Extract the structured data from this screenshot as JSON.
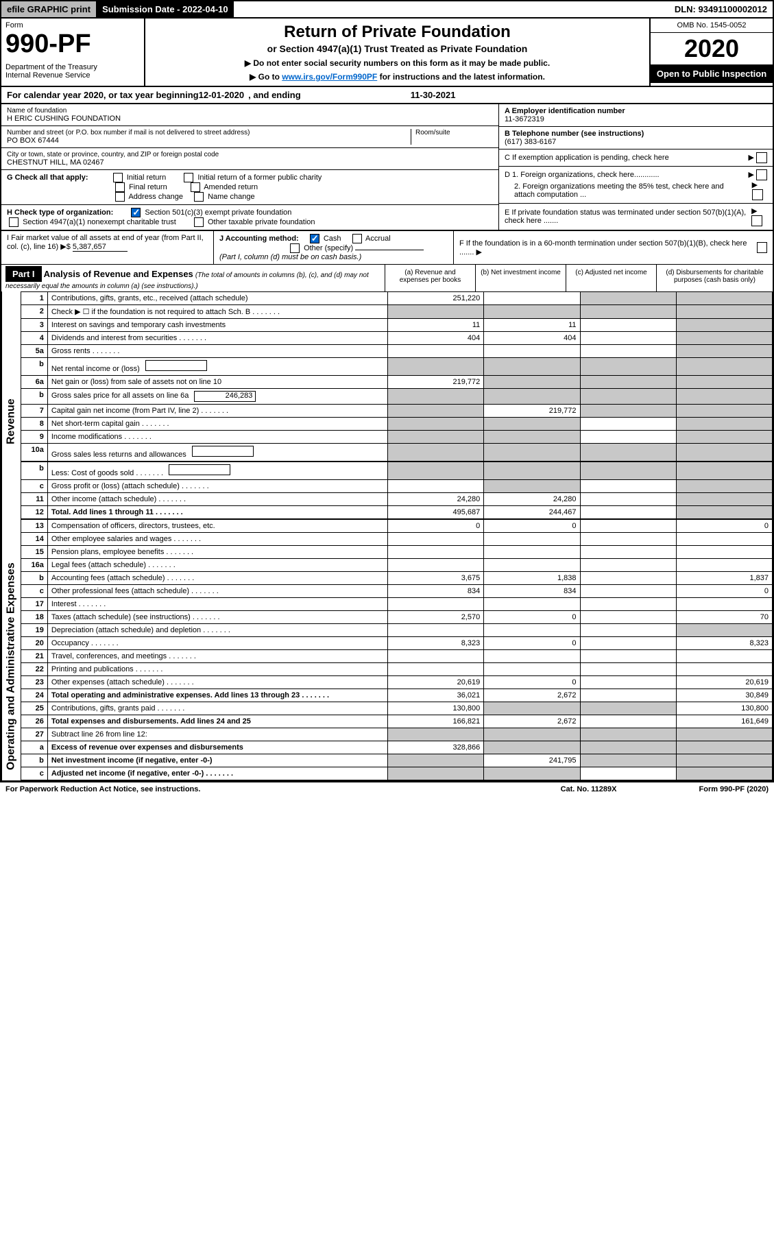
{
  "topbar": {
    "efile": "efile GRAPHIC print",
    "subdate_label": "Submission Date - ",
    "subdate": "2022-04-10",
    "dln_label": "DLN: ",
    "dln": "93491100002012"
  },
  "header": {
    "form_label": "Form",
    "form_num": "990-PF",
    "dept": "Department of the Treasury\nInternal Revenue Service",
    "title": "Return of Private Foundation",
    "subtitle": "or Section 4947(a)(1) Trust Treated as Private Foundation",
    "instr1": "▶ Do not enter social security numbers on this form as it may be made public.",
    "instr2_pre": "▶ Go to ",
    "instr2_link": "www.irs.gov/Form990PF",
    "instr2_post": " for instructions and the latest information.",
    "omb": "OMB No. 1545-0052",
    "year": "2020",
    "open": "Open to Public Inspection"
  },
  "calendar": {
    "text": "For calendar year 2020, or tax year beginning ",
    "begin": "12-01-2020",
    "mid": ", and ending ",
    "end": "11-30-2021"
  },
  "name": {
    "label": "Name of foundation",
    "value": "H ERIC CUSHING FOUNDATION",
    "addr_label": "Number and street (or P.O. box number if mail is not delivered to street address)",
    "addr": "PO BOX 67444",
    "room_label": "Room/suite",
    "city_label": "City or town, state or province, country, and ZIP or foreign postal code",
    "city": "CHESTNUT HILL, MA  02467"
  },
  "right": {
    "a_label": "A Employer identification number",
    "a_val": "11-3672319",
    "b_label": "B Telephone number (see instructions)",
    "b_val": "(617) 383-6167",
    "c_label": "C If exemption application is pending, check here",
    "d1": "D 1. Foreign organizations, check here............",
    "d2": "2. Foreign organizations meeting the 85% test, check here and attach computation ...",
    "e": "E  If private foundation status was terminated under section 507(b)(1)(A), check here .......",
    "f": "F  If the foundation is in a 60-month termination under section 507(b)(1)(B), check here .......  ▶"
  },
  "g": {
    "label": "G Check all that apply:",
    "opts": [
      "Initial return",
      "Initial return of a former public charity",
      "Final return",
      "Amended return",
      "Address change",
      "Name change"
    ]
  },
  "h": {
    "label": "H Check type of organization:",
    "opt1": "Section 501(c)(3) exempt private foundation",
    "opt2": "Section 4947(a)(1) nonexempt charitable trust",
    "opt3": "Other taxable private foundation"
  },
  "i": {
    "label": "I Fair market value of all assets at end of year (from Part II, col. (c), line 16) ▶$ ",
    "val": "5,387,657"
  },
  "j": {
    "label": "J Accounting method:",
    "cash": "Cash",
    "accrual": "Accrual",
    "other": "Other (specify)",
    "note": "(Part I, column (d) must be on cash basis.)"
  },
  "part1": {
    "label": "Part I",
    "title": "Analysis of Revenue and Expenses",
    "note": "(The total of amounts in columns (b), (c), and (d) may not necessarily equal the amounts in column (a) (see instructions).)",
    "col_a": "(a) Revenue and expenses per books",
    "col_b": "(b) Net investment income",
    "col_c": "(c) Adjusted net income",
    "col_d": "(d) Disbursements for charitable purposes (cash basis only)"
  },
  "sections": {
    "revenue": "Revenue",
    "opex": "Operating and Administrative Expenses"
  },
  "rows": [
    {
      "n": "1",
      "d": "Contributions, gifts, grants, etc., received (attach schedule)",
      "a": "251,220",
      "b": "",
      "c": "grey",
      "dd": "grey"
    },
    {
      "n": "2",
      "d": "Check ▶ ☐ if the foundation is not required to attach Sch. B",
      "dots": true,
      "a": "grey",
      "b": "grey",
      "c": "grey",
      "dd": "grey"
    },
    {
      "n": "3",
      "d": "Interest on savings and temporary cash investments",
      "a": "11",
      "b": "11",
      "c": "",
      "dd": "grey"
    },
    {
      "n": "4",
      "d": "Dividends and interest from securities",
      "dots": true,
      "a": "404",
      "b": "404",
      "c": "",
      "dd": "grey"
    },
    {
      "n": "5a",
      "d": "Gross rents",
      "dots": true,
      "a": "",
      "b": "",
      "c": "",
      "dd": "grey"
    },
    {
      "n": "b",
      "d": "Net rental income or (loss)",
      "inline": true,
      "a": "grey",
      "b": "grey",
      "c": "grey",
      "dd": "grey"
    },
    {
      "n": "6a",
      "d": "Net gain or (loss) from sale of assets not on line 10",
      "a": "219,772",
      "b": "grey",
      "c": "grey",
      "dd": "grey"
    },
    {
      "n": "b",
      "d": "Gross sales price for all assets on line 6a",
      "inline": true,
      "inline_val": "246,283",
      "a": "grey",
      "b": "grey",
      "c": "grey",
      "dd": "grey"
    },
    {
      "n": "7",
      "d": "Capital gain net income (from Part IV, line 2)",
      "dots": true,
      "a": "grey",
      "b": "219,772",
      "c": "grey",
      "dd": "grey"
    },
    {
      "n": "8",
      "d": "Net short-term capital gain",
      "dots": true,
      "a": "grey",
      "b": "grey",
      "c": "",
      "dd": "grey"
    },
    {
      "n": "9",
      "d": "Income modifications",
      "dots": true,
      "a": "grey",
      "b": "grey",
      "c": "",
      "dd": "grey"
    },
    {
      "n": "10a",
      "d": "Gross sales less returns and allowances",
      "inline": true,
      "a": "grey",
      "b": "grey",
      "c": "grey",
      "dd": "grey"
    },
    {
      "n": "b",
      "d": "Less: Cost of goods sold",
      "dots": true,
      "inline": true,
      "a": "grey",
      "b": "grey",
      "c": "grey",
      "dd": "grey"
    },
    {
      "n": "c",
      "d": "Gross profit or (loss) (attach schedule)",
      "dots": true,
      "a": "",
      "b": "grey",
      "c": "",
      "dd": "grey"
    },
    {
      "n": "11",
      "d": "Other income (attach schedule)",
      "dots": true,
      "a": "24,280",
      "b": "24,280",
      "c": "",
      "dd": "grey"
    },
    {
      "n": "12",
      "d": "Total. Add lines 1 through 11",
      "dots": true,
      "bold": true,
      "a": "495,687",
      "b": "244,467",
      "c": "",
      "dd": "grey"
    },
    {
      "n": "13",
      "d": "Compensation of officers, directors, trustees, etc.",
      "a": "0",
      "b": "0",
      "c": "",
      "dd": "0"
    },
    {
      "n": "14",
      "d": "Other employee salaries and wages",
      "dots": true,
      "a": "",
      "b": "",
      "c": "",
      "dd": ""
    },
    {
      "n": "15",
      "d": "Pension plans, employee benefits",
      "dots": true,
      "a": "",
      "b": "",
      "c": "",
      "dd": ""
    },
    {
      "n": "16a",
      "d": "Legal fees (attach schedule)",
      "dots": true,
      "a": "",
      "b": "",
      "c": "",
      "dd": ""
    },
    {
      "n": "b",
      "d": "Accounting fees (attach schedule)",
      "dots": true,
      "a": "3,675",
      "b": "1,838",
      "c": "",
      "dd": "1,837"
    },
    {
      "n": "c",
      "d": "Other professional fees (attach schedule)",
      "dots": true,
      "a": "834",
      "b": "834",
      "c": "",
      "dd": "0"
    },
    {
      "n": "17",
      "d": "Interest",
      "dots": true,
      "a": "",
      "b": "",
      "c": "",
      "dd": ""
    },
    {
      "n": "18",
      "d": "Taxes (attach schedule) (see instructions)",
      "dots": true,
      "a": "2,570",
      "b": "0",
      "c": "",
      "dd": "70"
    },
    {
      "n": "19",
      "d": "Depreciation (attach schedule) and depletion",
      "dots": true,
      "a": "",
      "b": "",
      "c": "",
      "dd": "grey"
    },
    {
      "n": "20",
      "d": "Occupancy",
      "dots": true,
      "a": "8,323",
      "b": "0",
      "c": "",
      "dd": "8,323"
    },
    {
      "n": "21",
      "d": "Travel, conferences, and meetings",
      "dots": true,
      "a": "",
      "b": "",
      "c": "",
      "dd": ""
    },
    {
      "n": "22",
      "d": "Printing and publications",
      "dots": true,
      "a": "",
      "b": "",
      "c": "",
      "dd": ""
    },
    {
      "n": "23",
      "d": "Other expenses (attach schedule)",
      "dots": true,
      "a": "20,619",
      "b": "0",
      "c": "",
      "dd": "20,619"
    },
    {
      "n": "24",
      "d": "Total operating and administrative expenses. Add lines 13 through 23",
      "dots": true,
      "bold": true,
      "a": "36,021",
      "b": "2,672",
      "c": "",
      "dd": "30,849"
    },
    {
      "n": "25",
      "d": "Contributions, gifts, grants paid",
      "dots": true,
      "a": "130,800",
      "b": "grey",
      "c": "grey",
      "dd": "130,800"
    },
    {
      "n": "26",
      "d": "Total expenses and disbursements. Add lines 24 and 25",
      "bold": true,
      "a": "166,821",
      "b": "2,672",
      "c": "",
      "dd": "161,649"
    },
    {
      "n": "27",
      "d": "Subtract line 26 from line 12:",
      "a": "grey",
      "b": "grey",
      "c": "grey",
      "dd": "grey"
    },
    {
      "n": "a",
      "d": "Excess of revenue over expenses and disbursements",
      "bold": true,
      "a": "328,866",
      "b": "grey",
      "c": "grey",
      "dd": "grey"
    },
    {
      "n": "b",
      "d": "Net investment income (if negative, enter -0-)",
      "bold": true,
      "a": "grey",
      "b": "241,795",
      "c": "grey",
      "dd": "grey"
    },
    {
      "n": "c",
      "d": "Adjusted net income (if negative, enter -0-)",
      "dots": true,
      "bold": true,
      "a": "grey",
      "b": "grey",
      "c": "",
      "dd": "grey"
    }
  ],
  "footer": {
    "left": "For Paperwork Reduction Act Notice, see instructions.",
    "mid": "Cat. No. 11289X",
    "right": "Form 990-PF (2020)"
  },
  "colors": {
    "grey": "#c8c8c8",
    "link": "#0066cc"
  }
}
